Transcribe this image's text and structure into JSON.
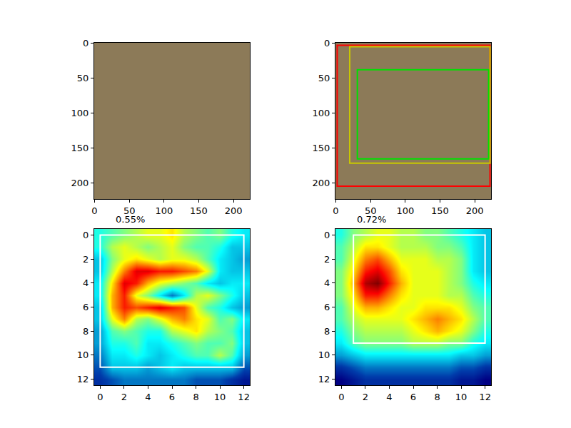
{
  "chart_data": [
    {
      "type": "image",
      "xlim": [
        -0.5,
        223.5
      ],
      "ylim": [
        223.5,
        -0.5
      ],
      "xticks": [
        0,
        50,
        100,
        150,
        200
      ],
      "yticks": [
        0,
        50,
        100,
        150,
        200
      ]
    },
    {
      "type": "image",
      "xlim": [
        -0.5,
        223.5
      ],
      "ylim": [
        223.5,
        -0.5
      ],
      "xticks": [
        0,
        50,
        100,
        150,
        200
      ],
      "yticks": [
        0,
        50,
        100,
        150,
        200
      ],
      "boxes": [
        {
          "color": "red",
          "x": [
            2,
            222
          ],
          "y": [
            3,
            205
          ]
        },
        {
          "color": "#c8c800",
          "x": [
            20,
            222
          ],
          "y": [
            5,
            172
          ]
        },
        {
          "color": "#00e000",
          "x": [
            31,
            220
          ],
          "y": [
            38,
            166
          ]
        }
      ]
    },
    {
      "type": "heatmap",
      "title": "0.55%",
      "color": "Jet",
      "xlim": [
        -0.5,
        12.5
      ],
      "ylim": [
        12.5,
        -0.5
      ],
      "xticks": [
        0,
        2,
        4,
        6,
        8,
        10,
        12
      ],
      "yticks": [
        0,
        2,
        4,
        6,
        8,
        10,
        12
      ],
      "zlim": [
        0,
        1
      ],
      "box": {
        "color": "white",
        "x": [
          0,
          12
        ],
        "y": [
          0,
          11
        ]
      },
      "z": [
        [
          0.4,
          0.45,
          0.5,
          0.55,
          0.6,
          0.6,
          0.65,
          0.55,
          0.5,
          0.45,
          0.5,
          0.4,
          0.35
        ],
        [
          0.4,
          0.55,
          0.6,
          0.55,
          0.5,
          0.55,
          0.6,
          0.5,
          0.45,
          0.45,
          0.4,
          0.3,
          0.3
        ],
        [
          0.3,
          0.5,
          0.6,
          0.65,
          0.6,
          0.55,
          0.6,
          0.6,
          0.55,
          0.45,
          0.35,
          0.3,
          0.25
        ],
        [
          0.3,
          0.55,
          0.75,
          0.9,
          0.9,
          0.85,
          0.85,
          0.8,
          0.75,
          0.6,
          0.35,
          0.3,
          0.3
        ],
        [
          0.35,
          0.65,
          0.9,
          0.85,
          0.7,
          0.6,
          0.55,
          0.5,
          0.45,
          0.35,
          0.3,
          0.35,
          0.35
        ],
        [
          0.35,
          0.7,
          0.85,
          0.6,
          0.5,
          0.35,
          0.2,
          0.35,
          0.55,
          0.6,
          0.5,
          0.4,
          0.3
        ],
        [
          0.3,
          0.7,
          0.85,
          0.8,
          0.85,
          0.9,
          0.85,
          0.8,
          0.6,
          0.45,
          0.4,
          0.3,
          0.25
        ],
        [
          0.3,
          0.6,
          0.75,
          0.55,
          0.5,
          0.6,
          0.7,
          0.75,
          0.65,
          0.6,
          0.45,
          0.5,
          0.35
        ],
        [
          0.25,
          0.45,
          0.5,
          0.45,
          0.4,
          0.4,
          0.55,
          0.6,
          0.65,
          0.55,
          0.5,
          0.45,
          0.3
        ],
        [
          0.25,
          0.4,
          0.4,
          0.45,
          0.35,
          0.35,
          0.4,
          0.45,
          0.5,
          0.45,
          0.45,
          0.5,
          0.3
        ],
        [
          0.2,
          0.35,
          0.35,
          0.4,
          0.35,
          0.3,
          0.35,
          0.4,
          0.45,
          0.45,
          0.55,
          0.45,
          0.25
        ],
        [
          0.15,
          0.3,
          0.3,
          0.3,
          0.25,
          0.3,
          0.35,
          0.3,
          0.3,
          0.3,
          0.3,
          0.3,
          0.15
        ],
        [
          0.1,
          0.15,
          0.2,
          0.2,
          0.2,
          0.2,
          0.2,
          0.2,
          0.15,
          0.15,
          0.15,
          0.1,
          0.05
        ]
      ]
    },
    {
      "type": "heatmap",
      "title": "0.72%",
      "color": "Jet",
      "xlim": [
        -0.5,
        12.5
      ],
      "ylim": [
        12.5,
        -0.5
      ],
      "xticks": [
        0,
        2,
        4,
        6,
        8,
        10,
        12
      ],
      "yticks": [
        0,
        2,
        4,
        6,
        8,
        10,
        12
      ],
      "zlim": [
        0,
        1
      ],
      "box": {
        "color": "white",
        "x": [
          1,
          12
        ],
        "y": [
          0,
          9
        ]
      },
      "z": [
        [
          0.4,
          0.5,
          0.55,
          0.6,
          0.6,
          0.55,
          0.55,
          0.5,
          0.5,
          0.45,
          0.4,
          0.35,
          0.3
        ],
        [
          0.45,
          0.55,
          0.65,
          0.65,
          0.6,
          0.55,
          0.55,
          0.55,
          0.5,
          0.5,
          0.45,
          0.35,
          0.3
        ],
        [
          0.45,
          0.6,
          0.75,
          0.8,
          0.7,
          0.6,
          0.6,
          0.6,
          0.55,
          0.55,
          0.5,
          0.35,
          0.3
        ],
        [
          0.5,
          0.65,
          0.85,
          0.9,
          0.8,
          0.65,
          0.6,
          0.6,
          0.6,
          0.55,
          0.5,
          0.35,
          0.3
        ],
        [
          0.5,
          0.7,
          0.95,
          1.0,
          0.85,
          0.7,
          0.6,
          0.6,
          0.6,
          0.55,
          0.5,
          0.4,
          0.35
        ],
        [
          0.5,
          0.65,
          0.85,
          0.85,
          0.75,
          0.65,
          0.6,
          0.6,
          0.6,
          0.55,
          0.55,
          0.45,
          0.4
        ],
        [
          0.45,
          0.6,
          0.7,
          0.7,
          0.65,
          0.6,
          0.6,
          0.65,
          0.65,
          0.65,
          0.6,
          0.5,
          0.45
        ],
        [
          0.45,
          0.55,
          0.6,
          0.6,
          0.6,
          0.6,
          0.65,
          0.7,
          0.75,
          0.7,
          0.65,
          0.55,
          0.45
        ],
        [
          0.4,
          0.5,
          0.55,
          0.55,
          0.55,
          0.55,
          0.6,
          0.65,
          0.7,
          0.65,
          0.6,
          0.5,
          0.4
        ],
        [
          0.35,
          0.45,
          0.5,
          0.5,
          0.5,
          0.5,
          0.55,
          0.55,
          0.55,
          0.5,
          0.5,
          0.4,
          0.35
        ],
        [
          0.25,
          0.3,
          0.35,
          0.35,
          0.35,
          0.35,
          0.35,
          0.35,
          0.35,
          0.35,
          0.3,
          0.3,
          0.25
        ],
        [
          0.1,
          0.15,
          0.2,
          0.2,
          0.2,
          0.2,
          0.2,
          0.2,
          0.2,
          0.2,
          0.15,
          0.15,
          0.1
        ],
        [
          0.0,
          0.05,
          0.1,
          0.1,
          0.1,
          0.1,
          0.1,
          0.1,
          0.1,
          0.1,
          0.05,
          0.05,
          0.0
        ]
      ]
    }
  ]
}
